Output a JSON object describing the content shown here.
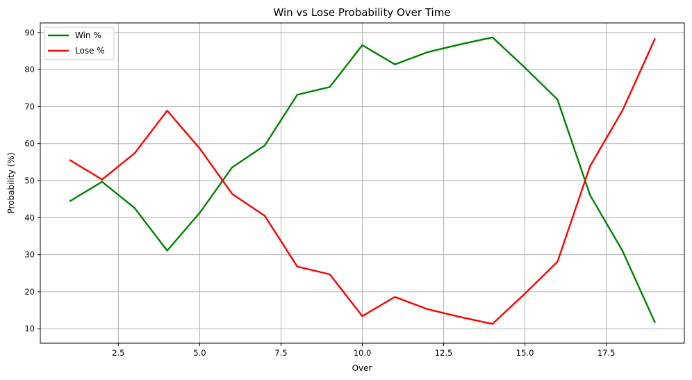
{
  "chart_data": {
    "type": "line",
    "title": "Win vs Lose Probability Over Time",
    "xlabel": "Over",
    "ylabel": "Probability (%)",
    "xlim": [
      0.1,
      19.9
    ],
    "ylim": [
      6.1,
      92.6
    ],
    "xticks": [
      2.5,
      5.0,
      7.5,
      10.0,
      12.5,
      15.0,
      17.5
    ],
    "xtick_labels": [
      "2.5",
      "5.0",
      "7.5",
      "10.0",
      "12.5",
      "15.0",
      "17.5"
    ],
    "yticks": [
      10,
      20,
      30,
      40,
      50,
      60,
      70,
      80,
      90
    ],
    "ytick_labels": [
      "10",
      "20",
      "30",
      "40",
      "50",
      "60",
      "70",
      "80",
      "90"
    ],
    "grid": true,
    "legend_position": "top-left",
    "x": [
      1,
      2,
      3,
      4,
      5,
      6,
      7,
      8,
      9,
      10,
      11,
      12,
      13,
      14,
      15,
      16,
      17,
      18,
      19
    ],
    "series": [
      {
        "name": "Win %",
        "color": "#008000",
        "values": [
          44.4,
          49.7,
          42.6,
          31.1,
          41.3,
          53.6,
          59.5,
          73.2,
          75.3,
          86.6,
          81.4,
          84.7,
          86.8,
          88.7,
          80.5,
          71.9,
          46.1,
          31.0,
          11.6
        ]
      },
      {
        "name": "Lose %",
        "color": "#ff0000",
        "values": [
          55.6,
          50.3,
          57.4,
          68.9,
          58.7,
          46.4,
          40.5,
          26.8,
          24.7,
          13.4,
          18.6,
          15.3,
          13.2,
          11.3,
          19.5,
          28.1,
          53.9,
          69.0,
          88.4
        ]
      }
    ]
  }
}
